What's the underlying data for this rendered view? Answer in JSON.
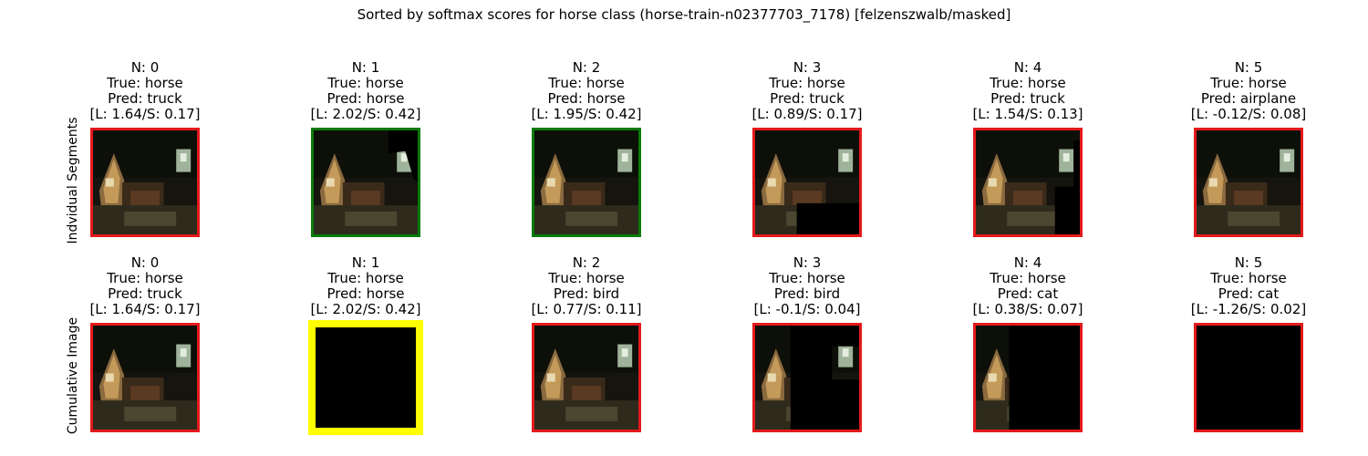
{
  "chart_data": {
    "type": "image-grid",
    "title": "Sorted by softmax scores for horse class (horse-train-n02377703_7178) [felzenszwalb/masked]",
    "rows": [
      {
        "label": "Indvidual Segments",
        "panels": [
          {
            "n": "N: 0",
            "truth": "True: horse",
            "pred": "Pred: truck",
            "scores": "[L: 1.64/S: 0.17]",
            "border": "#e31a1c",
            "mask": "full"
          },
          {
            "n": "N: 1",
            "truth": "True: horse",
            "pred": "Pred: horse",
            "scores": "[L: 2.02/S: 0.42]",
            "border": "#0a7a0a",
            "mask": "seg1"
          },
          {
            "n": "N: 2",
            "truth": "True: horse",
            "pred": "Pred: horse",
            "scores": "[L: 1.95/S: 0.42]",
            "border": "#0a7a0a",
            "mask": "seg2"
          },
          {
            "n": "N: 3",
            "truth": "True: horse",
            "pred": "Pred: truck",
            "scores": "[L: 0.89/S: 0.17]",
            "border": "#e31a1c",
            "mask": "seg3"
          },
          {
            "n": "N: 4",
            "truth": "True: horse",
            "pred": "Pred: truck",
            "scores": "[L: 1.54/S: 0.13]",
            "border": "#e31a1c",
            "mask": "seg4"
          },
          {
            "n": "N: 5",
            "truth": "True: horse",
            "pred": "Pred: airplane",
            "scores": "[L: -0.12/S: 0.08]",
            "border": "#e31a1c",
            "mask": "seg5"
          }
        ]
      },
      {
        "label": "Cumulative Image",
        "panels": [
          {
            "n": "N: 0",
            "truth": "True: horse",
            "pred": "Pred: truck",
            "scores": "[L: 1.64/S: 0.17]",
            "border": "#e31a1c",
            "mask": "full"
          },
          {
            "n": "N: 1",
            "truth": "True: horse",
            "pred": "Pred: horse",
            "scores": "[L: 2.02/S: 0.42]",
            "border": "#ffff00",
            "mask": "cum1"
          },
          {
            "n": "N: 2",
            "truth": "True: horse",
            "pred": "Pred: bird",
            "scores": "[L: 0.77/S: 0.11]",
            "border": "#e31a1c",
            "mask": "cum2"
          },
          {
            "n": "N: 3",
            "truth": "True: horse",
            "pred": "Pred: bird",
            "scores": "[L: -0.1/S: 0.04]",
            "border": "#e31a1c",
            "mask": "cum3"
          },
          {
            "n": "N: 4",
            "truth": "True: horse",
            "pred": "Pred: cat",
            "scores": "[L: 0.38/S: 0.07]",
            "border": "#e31a1c",
            "mask": "cum4"
          },
          {
            "n": "N: 5",
            "truth": "True: horse",
            "pred": "Pred: cat",
            "scores": "[L: -1.26/S: 0.02]",
            "border": "#e31a1c",
            "mask": "cum5"
          }
        ]
      }
    ]
  }
}
